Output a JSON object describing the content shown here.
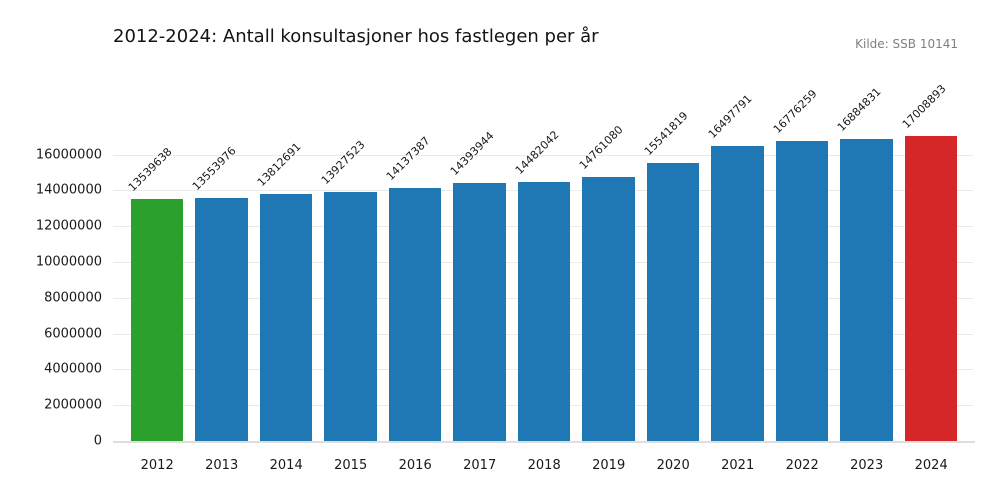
{
  "title": "2012-2024: Antall konsultasjoner hos fastlegen per år",
  "source": "Kilde: SSB 10141",
  "chart_data": {
    "type": "bar",
    "title": "2012-2024: Antall konsultasjoner hos fastlegen per år",
    "xlabel": "",
    "ylabel": "",
    "categories": [
      "2012",
      "2013",
      "2014",
      "2015",
      "2016",
      "2017",
      "2018",
      "2019",
      "2020",
      "2021",
      "2022",
      "2023",
      "2024"
    ],
    "values": [
      13539638,
      13553976,
      13812691,
      13927523,
      14137387,
      14393944,
      14482042,
      14761080,
      15541819,
      16497791,
      16776259,
      16884831,
      17008893
    ],
    "bar_colors": [
      "#2ca02c",
      "#1f77b4",
      "#1f77b4",
      "#1f77b4",
      "#1f77b4",
      "#1f77b4",
      "#1f77b4",
      "#1f77b4",
      "#1f77b4",
      "#1f77b4",
      "#1f77b4",
      "#1f77b4",
      "#d62728"
    ],
    "value_labels": [
      "13539638",
      "13553976",
      "13812691",
      "13927523",
      "14137387",
      "14393944",
      "14482042",
      "14761080",
      "15541819",
      "16497791",
      "16776259",
      "16884831",
      "17008893"
    ],
    "yticks": [
      0,
      2000000,
      4000000,
      6000000,
      8000000,
      10000000,
      12000000,
      14000000,
      16000000
    ],
    "ytick_labels": [
      "0",
      "2000000",
      "4000000",
      "6000000",
      "8000000",
      "10000000",
      "12000000",
      "14000000",
      "16000000"
    ],
    "ylim": [
      0,
      17900000
    ],
    "grid": "horizontal",
    "legend": "none",
    "annotation_note": "first bar highlighted green, last bar highlighted red"
  }
}
